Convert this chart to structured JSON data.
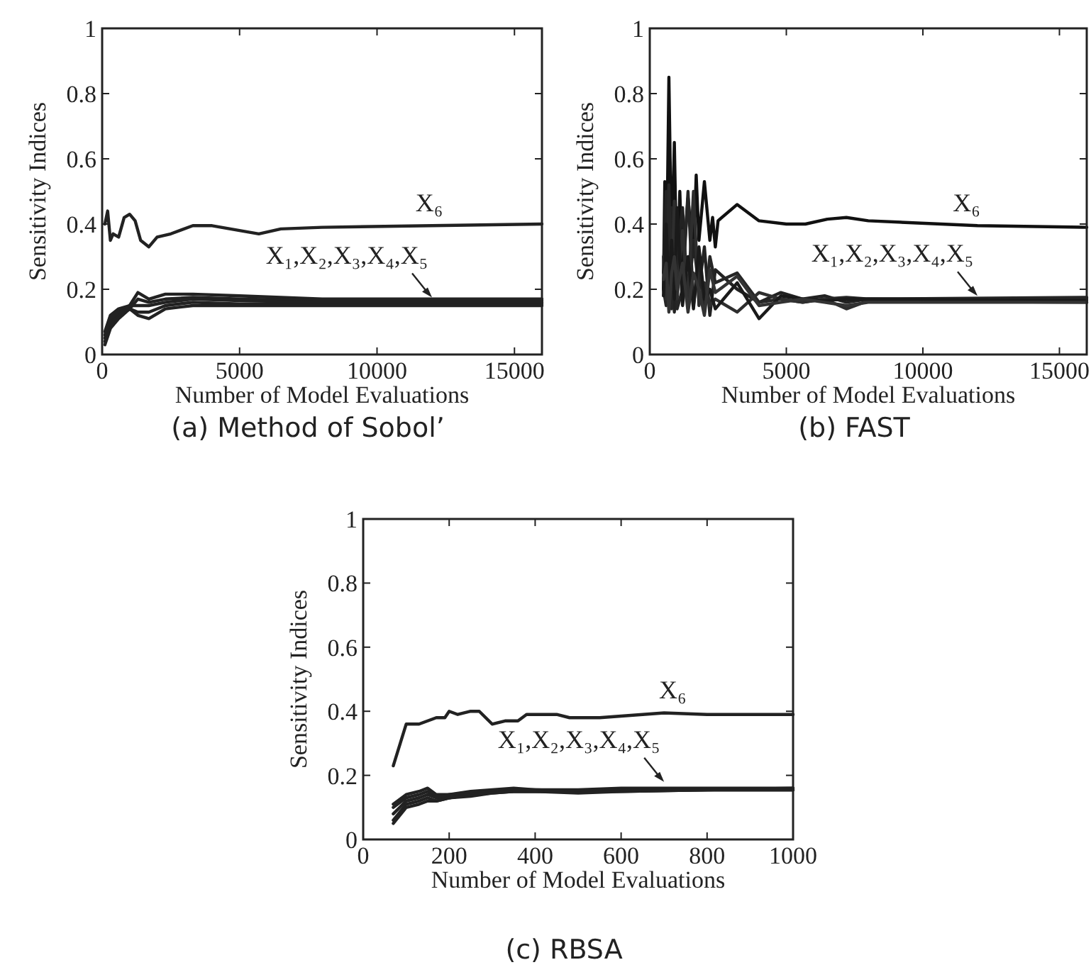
{
  "chart_data": [
    {
      "type": "line",
      "title": "(a) Method of Sobol’",
      "xlabel": "Number of Model Evaluations",
      "ylabel": "Sensitivity Indices",
      "xlim": [
        0,
        16000
      ],
      "xticks": [
        0,
        5000,
        10000,
        15000
      ],
      "ylim": [
        0,
        1
      ],
      "yticks": [
        0,
        0.2,
        0.4,
        0.6,
        0.8,
        1
      ],
      "grid": false,
      "marker": "none",
      "line_style": "solid",
      "x": [
        100,
        300,
        600,
        1000,
        1300,
        1700,
        2300,
        3300,
        5000,
        8000,
        16000
      ],
      "series": [
        {
          "color": "#222222",
          "x": [
            100,
            200,
            300,
            400,
            600,
            800,
            1000,
            1200,
            1400,
            1700,
            2000,
            2500,
            3300,
            4000,
            5700,
            6500,
            8000,
            12000,
            16000
          ],
          "values": [
            0.4,
            0.44,
            0.35,
            0.37,
            0.36,
            0.42,
            0.43,
            0.41,
            0.35,
            0.33,
            0.36,
            0.37,
            0.395,
            0.395,
            0.37,
            0.385,
            0.39,
            0.395,
            0.4
          ]
        },
        {
          "color": "#222222",
          "values": [
            0.05,
            0.1,
            0.13,
            0.15,
            0.19,
            0.17,
            0.185,
            0.185,
            0.18,
            0.17,
            0.17
          ]
        },
        {
          "color": "#222222",
          "values": [
            0.04,
            0.09,
            0.12,
            0.14,
            0.17,
            0.16,
            0.17,
            0.175,
            0.17,
            0.165,
            0.165
          ]
        },
        {
          "color": "#222222",
          "values": [
            0.07,
            0.12,
            0.14,
            0.15,
            0.15,
            0.15,
            0.16,
            0.17,
            0.165,
            0.16,
            0.16
          ]
        },
        {
          "color": "#222222",
          "values": [
            0.03,
            0.08,
            0.11,
            0.14,
            0.13,
            0.13,
            0.15,
            0.16,
            0.155,
            0.155,
            0.155
          ]
        },
        {
          "color": "#222222",
          "values": [
            0.06,
            0.11,
            0.13,
            0.14,
            0.12,
            0.11,
            0.14,
            0.15,
            0.15,
            0.15,
            0.15
          ]
        }
      ],
      "annotations": [
        {
          "text": "X₆",
          "x": 11900,
          "y": 0.395
        },
        {
          "text": "X₁,X₂,X₃,X₄,X₅",
          "x": 12000,
          "y": 0.175
        }
      ]
    },
    {
      "type": "line",
      "title": "(b) FAST",
      "xlabel": "Number of Model Evaluations",
      "ylabel": "Sensitivity Indices",
      "xlim": [
        0,
        16000
      ],
      "xticks": [
        0,
        5000,
        10000,
        15000
      ],
      "ylim": [
        0,
        1
      ],
      "yticks": [
        0,
        0.2,
        0.4,
        0.6,
        0.8,
        1
      ],
      "grid": false,
      "marker": "none",
      "line_style": "solid",
      "x": [
        500,
        600,
        700,
        800,
        900,
        1000,
        1200,
        1400,
        1600,
        1800,
        2000,
        2200,
        2400,
        3200,
        4000,
        4800,
        5600,
        6400,
        7200,
        8000,
        16000
      ],
      "series": [
        {
          "color": "#111111",
          "x": [
            500,
            550,
            600,
            700,
            800,
            900,
            1000,
            1100,
            1200,
            1400,
            1600,
            1700,
            1800,
            2000,
            2200,
            2300,
            2400,
            2500,
            3200,
            4000,
            5000,
            5700,
            6500,
            7200,
            8000,
            12000,
            16000
          ],
          "values": [
            0.2,
            0.53,
            0.17,
            0.85,
            0.3,
            0.65,
            0.2,
            0.5,
            0.25,
            0.48,
            0.3,
            0.55,
            0.35,
            0.53,
            0.35,
            0.42,
            0.33,
            0.41,
            0.46,
            0.41,
            0.4,
            0.4,
            0.415,
            0.42,
            0.41,
            0.395,
            0.39
          ]
        },
        {
          "color": "#222222",
          "values": [
            0.25,
            0.5,
            0.15,
            0.45,
            0.13,
            0.3,
            0.45,
            0.15,
            0.35,
            0.2,
            0.33,
            0.12,
            0.26,
            0.2,
            0.16,
            0.19,
            0.17,
            0.18,
            0.16,
            0.17,
            0.17
          ]
        },
        {
          "color": "#262626",
          "values": [
            0.2,
            0.15,
            0.52,
            0.14,
            0.4,
            0.14,
            0.2,
            0.5,
            0.15,
            0.28,
            0.13,
            0.3,
            0.22,
            0.25,
            0.16,
            0.17,
            0.16,
            0.17,
            0.175,
            0.17,
            0.175
          ]
        },
        {
          "color": "#2e2e2e",
          "values": [
            0.3,
            0.17,
            0.3,
            0.2,
            0.47,
            0.17,
            0.38,
            0.17,
            0.5,
            0.15,
            0.22,
            0.15,
            0.17,
            0.13,
            0.19,
            0.17,
            0.16,
            0.17,
            0.14,
            0.165,
            0.16
          ]
        },
        {
          "color": "#1a1a1a",
          "values": [
            0.18,
            0.4,
            0.2,
            0.35,
            0.17,
            0.45,
            0.15,
            0.3,
            0.14,
            0.33,
            0.17,
            0.2,
            0.14,
            0.22,
            0.11,
            0.18,
            0.17,
            0.165,
            0.17,
            0.17,
            0.165
          ]
        },
        {
          "color": "#333333",
          "values": [
            0.23,
            0.28,
            0.13,
            0.25,
            0.3,
            0.2,
            0.28,
            0.13,
            0.25,
            0.2,
            0.12,
            0.26,
            0.19,
            0.24,
            0.15,
            0.16,
            0.17,
            0.16,
            0.15,
            0.16,
            0.16
          ]
        }
      ],
      "annotations": [
        {
          "text": "X₆",
          "x": 11600,
          "y": 0.395
        },
        {
          "text": "X₁,X₂,X₃,X₄,X₅",
          "x": 12000,
          "y": 0.18
        }
      ]
    },
    {
      "type": "line",
      "title": "(c) RBSA",
      "xlabel": "Number of Model Evaluations",
      "ylabel": "Sensitivity Indices",
      "xlim": [
        0,
        1000
      ],
      "xticks": [
        0,
        200,
        400,
        600,
        800,
        1000
      ],
      "ylim": [
        0,
        1
      ],
      "yticks": [
        0,
        0.2,
        0.4,
        0.6,
        0.8,
        1
      ],
      "grid": false,
      "marker": "none",
      "line_style": "solid",
      "x": [
        70,
        100,
        130,
        150,
        170,
        200,
        250,
        300,
        350,
        400,
        500,
        600,
        800,
        1000
      ],
      "series": [
        {
          "color": "#222222",
          "x": [
            70,
            100,
            130,
            150,
            170,
            190,
            200,
            220,
            250,
            270,
            300,
            330,
            360,
            380,
            450,
            480,
            550,
            600,
            700,
            800,
            900,
            1000
          ],
          "values": [
            0.23,
            0.36,
            0.36,
            0.37,
            0.38,
            0.38,
            0.4,
            0.39,
            0.4,
            0.4,
            0.36,
            0.37,
            0.37,
            0.39,
            0.39,
            0.38,
            0.38,
            0.385,
            0.395,
            0.39,
            0.39,
            0.39
          ]
        },
        {
          "color": "#222222",
          "values": [
            0.11,
            0.14,
            0.15,
            0.16,
            0.14,
            0.14,
            0.15,
            0.155,
            0.16,
            0.155,
            0.155,
            0.16,
            0.16,
            0.16
          ]
        },
        {
          "color": "#222222",
          "values": [
            0.1,
            0.13,
            0.14,
            0.15,
            0.13,
            0.14,
            0.145,
            0.15,
            0.155,
            0.155,
            0.15,
            0.155,
            0.155,
            0.16
          ]
        },
        {
          "color": "#222222",
          "values": [
            0.08,
            0.12,
            0.13,
            0.14,
            0.13,
            0.13,
            0.14,
            0.15,
            0.15,
            0.15,
            0.15,
            0.155,
            0.155,
            0.155
          ]
        },
        {
          "color": "#222222",
          "values": [
            0.06,
            0.11,
            0.12,
            0.13,
            0.12,
            0.13,
            0.14,
            0.145,
            0.15,
            0.15,
            0.15,
            0.15,
            0.155,
            0.155
          ]
        },
        {
          "color": "#222222",
          "values": [
            0.05,
            0.1,
            0.11,
            0.12,
            0.12,
            0.13,
            0.135,
            0.145,
            0.15,
            0.15,
            0.145,
            0.15,
            0.155,
            0.155
          ]
        }
      ],
      "annotations": [
        {
          "text": "X₆",
          "x": 720,
          "y": 0.395
        },
        {
          "text": "X₁,X₂,X₃,X₄,X₅",
          "x": 700,
          "y": 0.18
        }
      ]
    }
  ]
}
